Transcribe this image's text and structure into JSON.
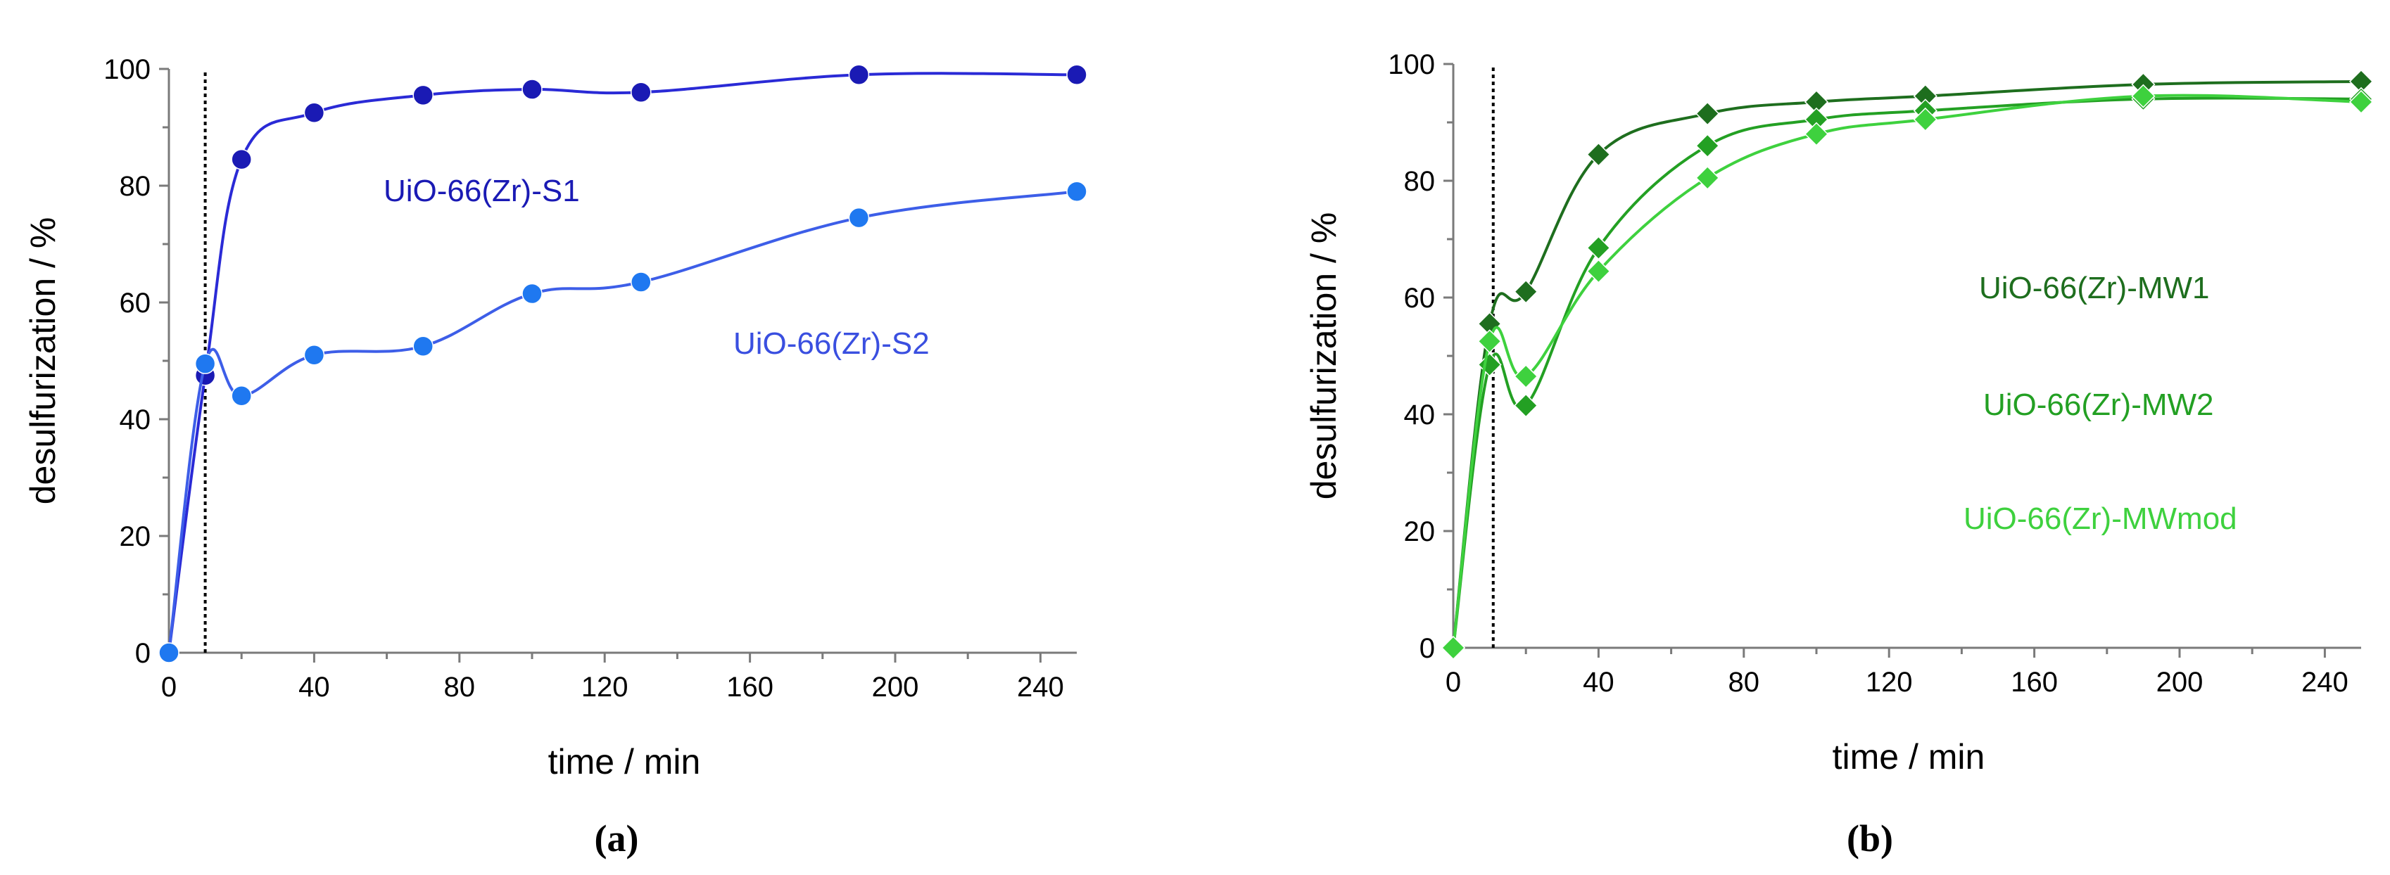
{
  "chart_data": [
    {
      "type": "line",
      "panel_label": "(a)",
      "xlabel": "time / min",
      "ylabel": "desulfurization / %",
      "xlim": [
        0,
        250
      ],
      "ylim": [
        0,
        100
      ],
      "xticks": [
        0,
        40,
        80,
        120,
        160,
        200,
        240
      ],
      "yticks": [
        0,
        20,
        40,
        60,
        80,
        100
      ],
      "vline_x": 10,
      "series": [
        {
          "name": "UiO-66(Zr)-S1",
          "color": "#1a1ab4",
          "line_color": "#2a2ad6",
          "marker": "circle",
          "x": [
            0,
            10,
            20,
            40,
            70,
            100,
            130,
            190,
            250
          ],
          "y": [
            0,
            47.5,
            84.5,
            92.5,
            95.5,
            96.5,
            96,
            99,
            99
          ]
        },
        {
          "name": "UiO-66(Zr)-S2",
          "color": "#1f78f0",
          "line_color": "#3d5ee8",
          "label_color": "#3a4fe0",
          "marker": "circle",
          "x": [
            0,
            10,
            20,
            40,
            70,
            100,
            130,
            190,
            250
          ],
          "y": [
            0,
            49.5,
            44,
            51,
            52.5,
            61.5,
            63.5,
            74.5,
            79
          ]
        }
      ]
    },
    {
      "type": "line",
      "panel_label": "(b)",
      "xlabel": "time / min",
      "ylabel": "desulfurization / %",
      "xlim": [
        0,
        250
      ],
      "ylim": [
        0,
        100
      ],
      "xticks": [
        0,
        40,
        80,
        120,
        160,
        200,
        240
      ],
      "yticks": [
        0,
        20,
        40,
        60,
        80,
        100
      ],
      "vline_x": 11,
      "series": [
        {
          "name": "UiO-66(Zr)-MW1",
          "color": "#1e6e1e",
          "marker": "diamond",
          "x": [
            0,
            10,
            20,
            40,
            70,
            100,
            130,
            190,
            250
          ],
          "y": [
            0,
            55.5,
            61,
            84.5,
            91.5,
            93.5,
            94.5,
            96.5,
            97
          ]
        },
        {
          "name": "UiO-66(Zr)-MW2",
          "color": "#23a023",
          "marker": "diamond",
          "x": [
            0,
            10,
            20,
            40,
            70,
            100,
            130,
            190,
            250
          ],
          "y": [
            0,
            48.5,
            41.5,
            68.5,
            86,
            90.5,
            92,
            94,
            94
          ]
        },
        {
          "name": "UiO-66(Zr)-MWmod",
          "color": "#3ed13e",
          "marker": "diamond",
          "x": [
            0,
            10,
            20,
            40,
            70,
            100,
            130,
            190,
            250
          ],
          "y": [
            0,
            52.5,
            46.5,
            64.5,
            80.5,
            88,
            90.5,
            94.5,
            93.5
          ]
        }
      ]
    }
  ]
}
